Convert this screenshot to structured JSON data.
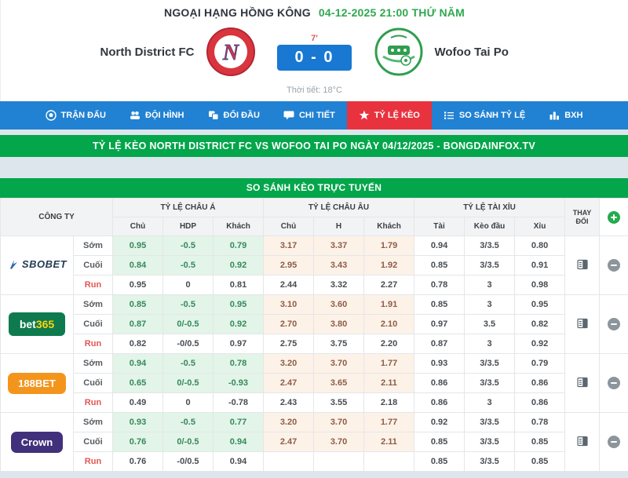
{
  "header": {
    "league": "NGOẠI HẠNG HỒNG KÔNG",
    "datetime": "04-12-2025 21:00 THỨ NĂM",
    "home_team": "North District FC",
    "away_team": "Wofoo Tai Po",
    "minute": "7'",
    "score": "0 - 0",
    "weather_label": "Thời tiết:",
    "weather_value": "18°C"
  },
  "nav": {
    "tabs": [
      {
        "label": "TRẬN ĐẤU",
        "icon": "soccer-ball-icon",
        "active": false
      },
      {
        "label": "ĐỘI HÌNH",
        "icon": "team-icon",
        "active": false
      },
      {
        "label": "ĐỐI ĐẦU",
        "icon": "versus-icon",
        "active": false
      },
      {
        "label": "CHI TIẾT",
        "icon": "comment-icon",
        "active": false
      },
      {
        "label": "TỶ LỆ KÈO",
        "icon": "star-icon",
        "active": true
      },
      {
        "label": "SO SÁNH TỶ LỆ",
        "icon": "list-icon",
        "active": false
      },
      {
        "label": "BXH",
        "icon": "bar-chart-icon",
        "active": false
      }
    ]
  },
  "banner": "TỶ LỆ KÈO NORTH DISTRICT FC VS WOFOO TAI PO NGÀY 04/12/2025 - BONGDAINFOX.TV",
  "table": {
    "title": "SO SÁNH KÈO TRỰC TUYẾN",
    "company_header": "CÔNG TY",
    "groups": [
      "TỶ LỆ CHÂU Á",
      "TỶ LỆ CHÂU ÂU",
      "TỶ LỆ TÀI XỈU"
    ],
    "subheaders": [
      "Chủ",
      "HDP",
      "Khách",
      "Chủ",
      "H",
      "Khách",
      "Tài",
      "Kèo đầu",
      "Xỉu"
    ],
    "change_header": "THAY ĐỔI"
  },
  "colors": {
    "nav_blue": "#2181d2",
    "active_tab_red": "#e8333f",
    "banner_green": "#04a64b",
    "score_blue": "#1878d2",
    "asia_bg": "#e3f4e9",
    "asia_text": "#35895a",
    "europe_bg": "#fdf2e8",
    "europe_text": "#8d5c48",
    "run_red": "#e25555",
    "plus_green": "#25ab4d",
    "minus_gray": "#8d959c"
  },
  "bookmakers": [
    {
      "name": "SBOBET",
      "logo": {
        "type": "sbobet",
        "text": "SBOBET",
        "color": "#223c55",
        "icon_color": "#2b6bb3"
      },
      "rows": [
        {
          "period": "Sớm",
          "values": [
            "0.95",
            "-0.5",
            "0.79",
            "3.17",
            "3.37",
            "1.79",
            "0.94",
            "3/3.5",
            "0.80"
          ]
        },
        {
          "period": "Cuối",
          "values": [
            "0.84",
            "-0.5",
            "0.92",
            "2.95",
            "3.43",
            "1.92",
            "0.85",
            "3/3.5",
            "0.91"
          ]
        },
        {
          "period": "Run",
          "values": [
            "0.95",
            "0",
            "0.81",
            "2.44",
            "3.32",
            "2.27",
            "0.78",
            "3",
            "0.98"
          ]
        }
      ]
    },
    {
      "name": "bet365",
      "logo": {
        "type": "bet365",
        "part1": "bet",
        "part2": "365",
        "bg": "#0e7a4e",
        "part1_color": "#ffffff",
        "part2_color": "#ffd60a"
      },
      "rows": [
        {
          "period": "Sớm",
          "values": [
            "0.85",
            "-0.5",
            "0.95",
            "3.10",
            "3.60",
            "1.91",
            "0.85",
            "3",
            "0.95"
          ]
        },
        {
          "period": "Cuối",
          "values": [
            "0.87",
            "0/-0.5",
            "0.92",
            "2.70",
            "3.80",
            "2.10",
            "0.97",
            "3.5",
            "0.82"
          ]
        },
        {
          "period": "Run",
          "values": [
            "0.82",
            "-0/0.5",
            "0.97",
            "2.75",
            "3.75",
            "2.20",
            "0.87",
            "3",
            "0.92"
          ]
        }
      ]
    },
    {
      "name": "188BET",
      "logo": {
        "type": "pill",
        "text": "188BET",
        "bg": "#f3951d",
        "color": "#ffffff"
      },
      "rows": [
        {
          "period": "Sớm",
          "values": [
            "0.94",
            "-0.5",
            "0.78",
            "3.20",
            "3.70",
            "1.77",
            "0.93",
            "3/3.5",
            "0.79"
          ]
        },
        {
          "period": "Cuối",
          "values": [
            "0.65",
            "0/-0.5",
            "-0.93",
            "2.47",
            "3.65",
            "2.11",
            "0.86",
            "3/3.5",
            "0.86"
          ]
        },
        {
          "period": "Run",
          "values": [
            "0.49",
            "0",
            "-0.78",
            "2.43",
            "3.55",
            "2.18",
            "0.86",
            "3",
            "0.86"
          ]
        }
      ]
    },
    {
      "name": "Crown",
      "logo": {
        "type": "pill",
        "text": "Crown",
        "bg": "#41317c",
        "color": "#ffffff"
      },
      "rows": [
        {
          "period": "Sớm",
          "values": [
            "0.93",
            "-0.5",
            "0.77",
            "3.20",
            "3.70",
            "1.77",
            "0.92",
            "3/3.5",
            "0.78"
          ]
        },
        {
          "period": "Cuối",
          "values": [
            "0.76",
            "0/-0.5",
            "0.94",
            "2.47",
            "3.70",
            "2.11",
            "0.85",
            "3/3.5",
            "0.85"
          ]
        },
        {
          "period": "Run",
          "values": [
            "0.76",
            "-0/0.5",
            "0.94",
            "",
            "",
            "",
            "0.85",
            "3/3.5",
            "0.85"
          ]
        }
      ]
    }
  ]
}
